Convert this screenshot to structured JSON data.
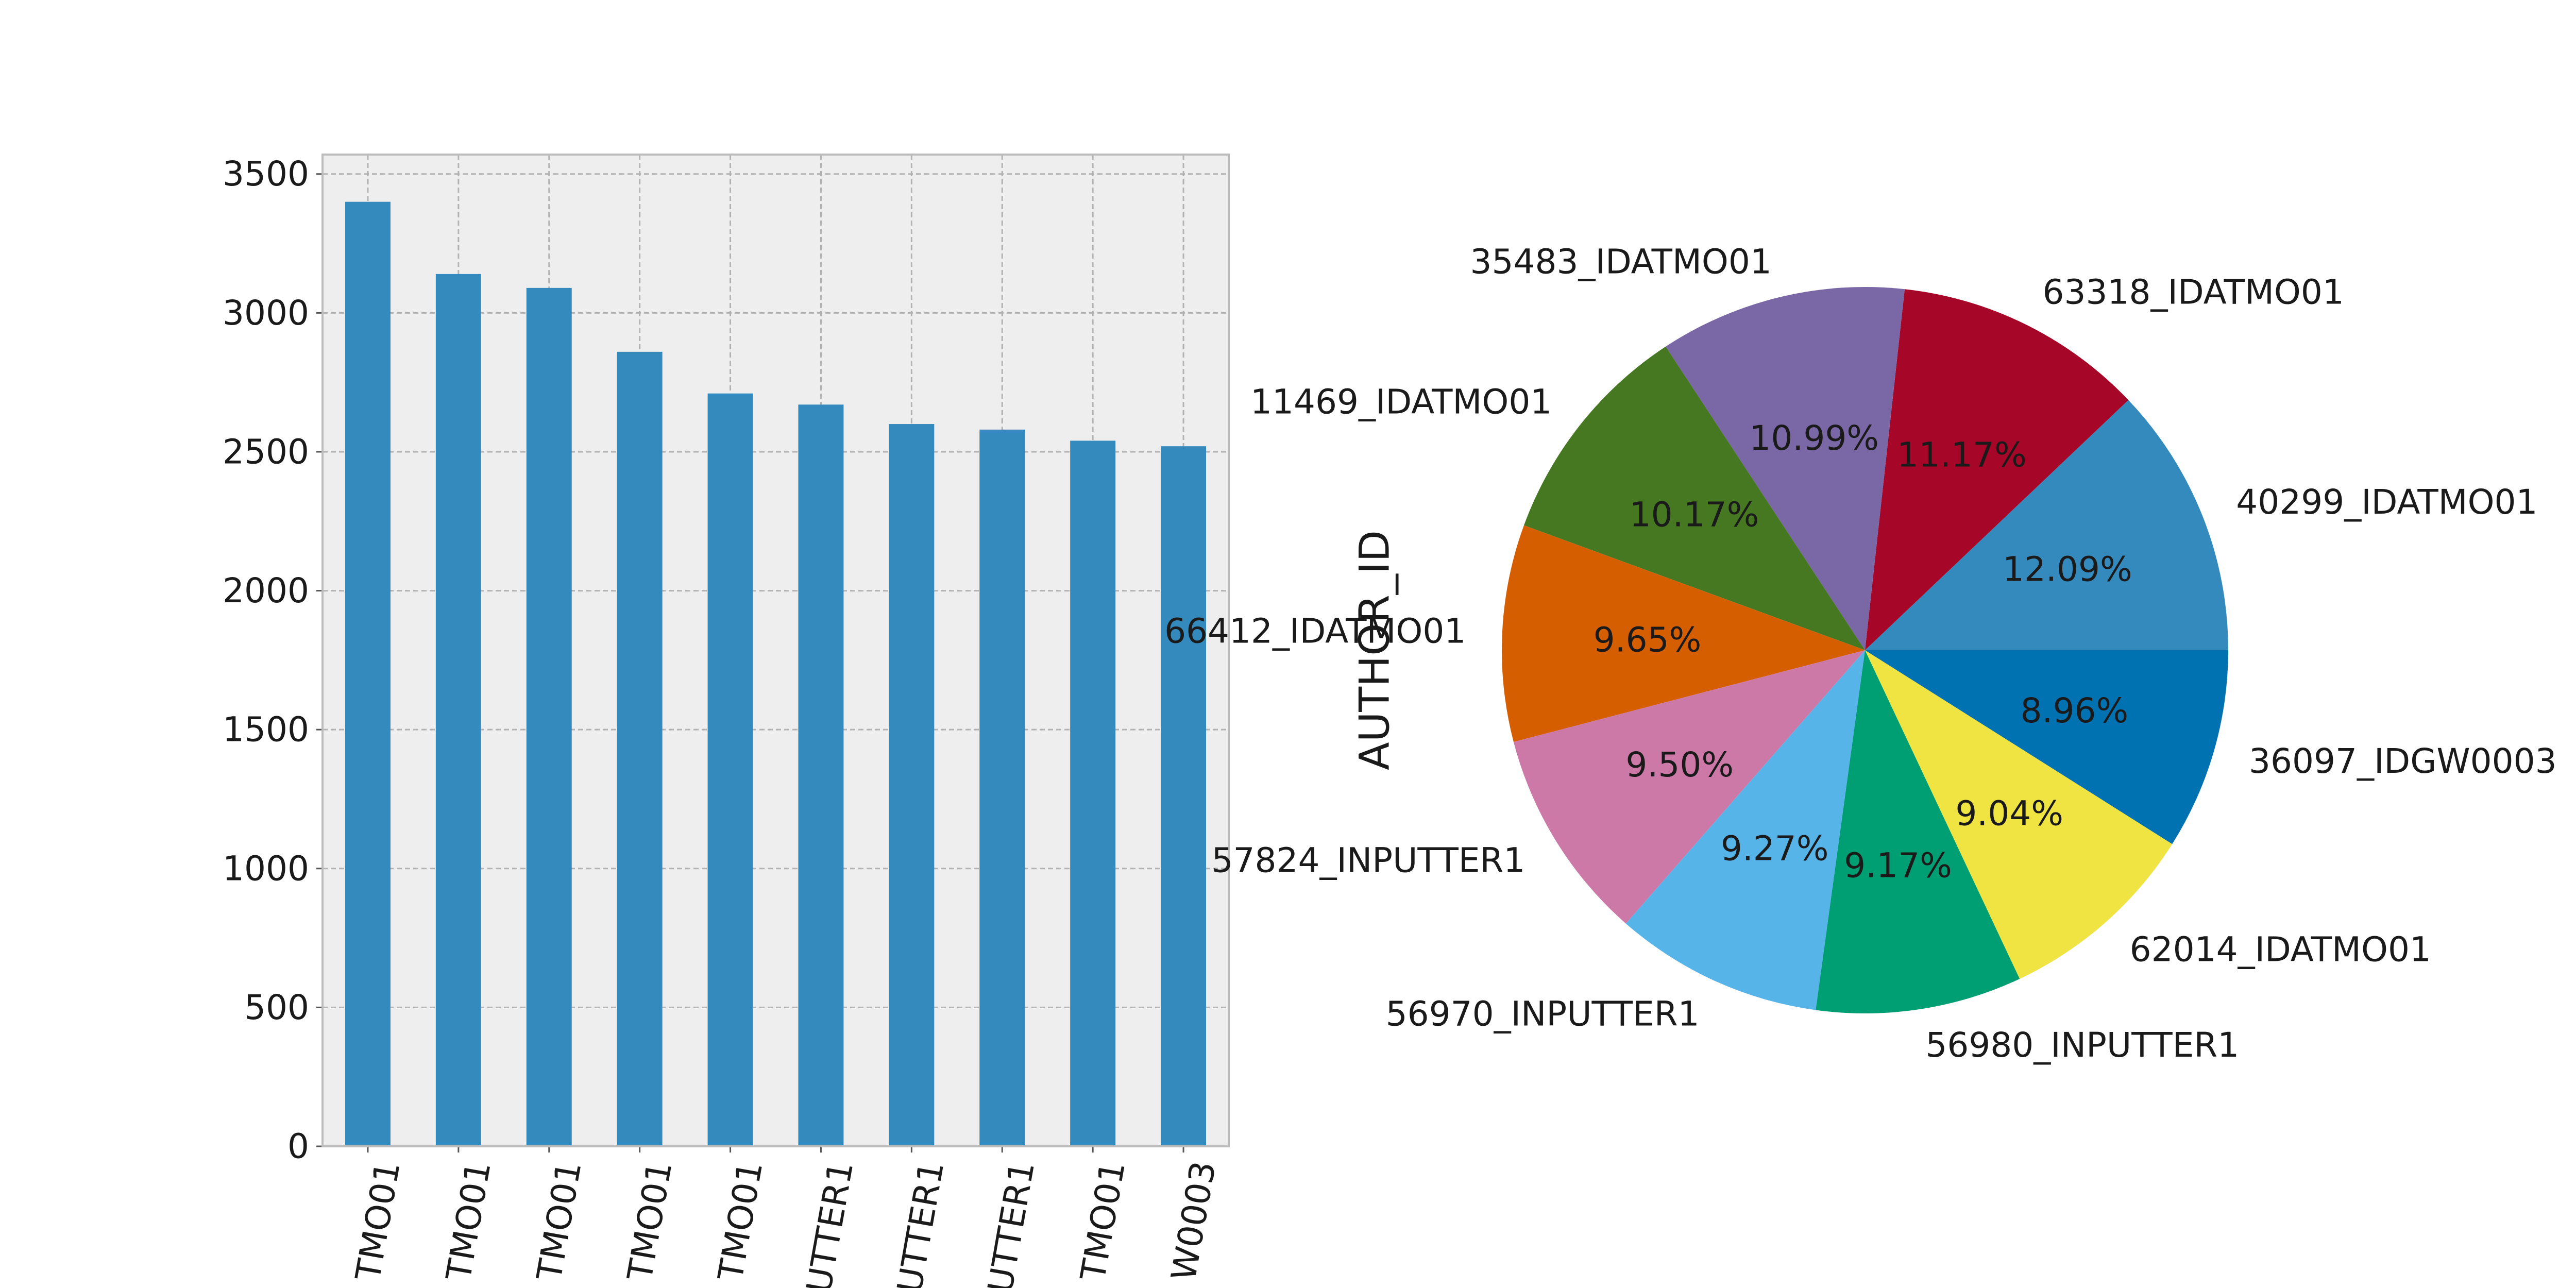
{
  "chart_data": [
    {
      "type": "bar",
      "categories": [
        "40299_IDATMO01",
        "63318_IDATMO01",
        "35483_IDATMO01",
        "11469_IDATMO01",
        "66412_IDATMO01",
        "57824_INPUTTER1",
        "56970_INPUTTER1",
        "56980_INPUTTER1",
        "62014_IDATMO01",
        "36097_IDGW0003"
      ],
      "category_tick_labels": [
        "TMO01",
        "TMO01",
        "TMO01",
        "TMO01",
        "TMO01",
        "UTTER1",
        "UTTER1",
        "UTTER1",
        "TMO01",
        "W0003"
      ],
      "values": [
        3400,
        3140,
        3090,
        2860,
        2710,
        2670,
        2600,
        2580,
        2540,
        2520
      ],
      "ylim": [
        0,
        3570
      ],
      "yticks": [
        0,
        500,
        1000,
        1500,
        2000,
        2500,
        3000,
        3500
      ],
      "grid": true,
      "bar_color": "#348ABD",
      "title": "",
      "xlabel": "",
      "ylabel": ""
    },
    {
      "type": "pie",
      "ylabel": "AUTHOR_ID",
      "title": "",
      "start_angle_deg": 0,
      "direction": "counterclockwise",
      "slices": [
        {
          "label": "40299_IDATMO01",
          "pct_label": "12.09%",
          "value": 12.09,
          "color": "#348ABD"
        },
        {
          "label": "63318_IDATMO01",
          "pct_label": "11.17%",
          "value": 11.17,
          "color": "#A60628"
        },
        {
          "label": "35483_IDATMO01",
          "pct_label": "10.99%",
          "value": 10.99,
          "color": "#7A68A6"
        },
        {
          "label": "11469_IDATMO01",
          "pct_label": "10.17%",
          "value": 10.17,
          "color": "#467821"
        },
        {
          "label": "66412_IDATMO01",
          "pct_label": "9.65%",
          "value": 9.65,
          "color": "#D55E00"
        },
        {
          "label": "57824_INPUTTER1",
          "pct_label": "9.50%",
          "value": 9.5,
          "color": "#CC79A7"
        },
        {
          "label": "56970_INPUTTER1",
          "pct_label": "9.27%",
          "value": 9.27,
          "color": "#56B4E9"
        },
        {
          "label": "56980_INPUTTER1",
          "pct_label": "9.17%",
          "value": 9.17,
          "color": "#009E73"
        },
        {
          "label": "62014_IDATMO01",
          "pct_label": "9.04%",
          "value": 9.04,
          "color": "#F0E442"
        },
        {
          "label": "36097_IDGW0003",
          "pct_label": "8.96%",
          "value": 8.96,
          "color": "#0072B2"
        }
      ]
    }
  ]
}
